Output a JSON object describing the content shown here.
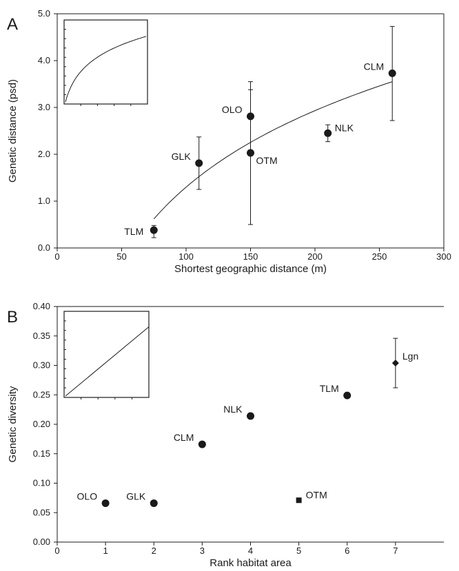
{
  "figure": {
    "colors": {
      "ink": "#1a1a1a",
      "background": "#ffffff"
    }
  },
  "chart_data": [
    {
      "panel": "A",
      "type": "scatter",
      "title": "",
      "xlabel": "Shortest geographic distance (m)",
      "ylabel": "Genetic distance (psd)",
      "xlim": [
        0,
        300
      ],
      "ylim": [
        0,
        5
      ],
      "xticks": [
        "0",
        "50",
        "100",
        "150",
        "200",
        "250",
        "300"
      ],
      "yticks": [
        "0.0",
        "1.0",
        "2.0",
        "3.0",
        "4.0",
        "5.0"
      ],
      "grid": false,
      "legend": "none",
      "points": [
        {
          "label": "TLM",
          "x": 75,
          "y": 0.38,
          "err_low": 0.22,
          "err_high": 0.48,
          "marker": "circle"
        },
        {
          "label": "GLK",
          "x": 110,
          "y": 1.81,
          "err_low": 1.25,
          "err_high": 2.37,
          "marker": "circle"
        },
        {
          "label": "OLO",
          "x": 150,
          "y": 2.81,
          "err_low": 2.07,
          "err_high": 3.55,
          "marker": "circle"
        },
        {
          "label": "OTM",
          "x": 150,
          "y": 2.03,
          "err_low": 0.5,
          "err_high": 3.38,
          "marker": "circle"
        },
        {
          "label": "NLK",
          "x": 210,
          "y": 2.45,
          "err_low": 2.27,
          "err_high": 2.63,
          "marker": "circle"
        },
        {
          "label": "CLM",
          "x": 260,
          "y": 3.73,
          "err_low": 2.72,
          "err_high": 4.73,
          "marker": "circle"
        }
      ],
      "fit": {
        "type": "logarithmic",
        "x_range": [
          75,
          260
        ],
        "y_start": 0.62,
        "y_end": 3.55
      },
      "inset": "logarithmic curve"
    },
    {
      "panel": "B",
      "type": "scatter",
      "title": "",
      "xlabel": "Rank habitat area",
      "ylabel": "Genetic diversity",
      "xlim": [
        0,
        8
      ],
      "ylim": [
        0,
        0.4
      ],
      "xticks": [
        "0",
        "1",
        "2",
        "3",
        "4",
        "5",
        "6",
        "7"
      ],
      "yticks": [
        "0.00",
        "0.05",
        "0.10",
        "0.15",
        "0.20",
        "0.25",
        "0.30",
        "0.35",
        "0.40"
      ],
      "grid": false,
      "legend": "none",
      "points": [
        {
          "label": "OLO",
          "x": 1,
          "y": 0.066,
          "marker": "circle"
        },
        {
          "label": "GLK",
          "x": 2,
          "y": 0.066,
          "marker": "circle"
        },
        {
          "label": "CLM",
          "x": 3,
          "y": 0.166,
          "marker": "circle"
        },
        {
          "label": "NLK",
          "x": 4,
          "y": 0.214,
          "marker": "circle"
        },
        {
          "label": "OTM",
          "x": 5,
          "y": 0.071,
          "marker": "square"
        },
        {
          "label": "TLM",
          "x": 6,
          "y": 0.249,
          "marker": "circle"
        },
        {
          "label": "Lgn",
          "x": 7,
          "y": 0.304,
          "err_low": 0.262,
          "err_high": 0.346,
          "marker": "diamond"
        }
      ],
      "inset": "linear"
    }
  ]
}
